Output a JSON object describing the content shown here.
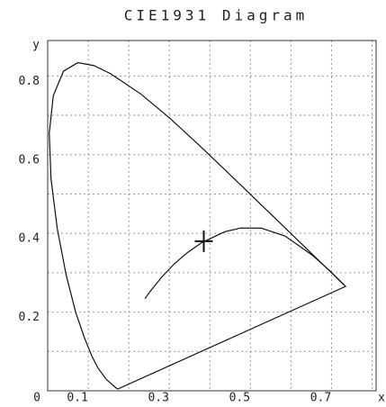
{
  "chart_data": {
    "type": "chromaticity",
    "title": "CIE1931 Diagram",
    "x_label": "x",
    "y_label": "y",
    "xlim": [
      0,
      0.81
    ],
    "ylim": [
      0,
      0.89
    ],
    "xticks": [
      0,
      0.1,
      0.3,
      0.5,
      0.7
    ],
    "yticks": [
      0.2,
      0.4,
      0.6,
      0.8
    ],
    "xgrid": [
      0.1,
      0.2,
      0.3,
      0.4,
      0.5,
      0.6,
      0.7,
      0.8
    ],
    "ygrid": [
      0.1,
      0.2,
      0.3,
      0.4,
      0.5,
      0.6,
      0.7,
      0.8
    ],
    "grid": true,
    "color": "#111111",
    "series": [
      {
        "x": [
          0.1741,
          0.1714,
          0.1644,
          0.144,
          0.1241,
          0.1096,
          0.0913,
          0.0687,
          0.0454,
          0.0235,
          0.0082,
          0.0039,
          0.0139,
          0.0389,
          0.0743,
          0.1142,
          0.1547,
          0.2296,
          0.3016,
          0.3731,
          0.4441,
          0.5125,
          0.5752,
          0.627,
          0.6915,
          0.719,
          0.7347
        ],
        "values": [
          0.005,
          0.0051,
          0.0109,
          0.0297,
          0.0578,
          0.0868,
          0.1327,
          0.2007,
          0.295,
          0.4127,
          0.5384,
          0.6548,
          0.7502,
          0.812,
          0.8338,
          0.8262,
          0.8059,
          0.7543,
          0.6923,
          0.6245,
          0.5547,
          0.4866,
          0.4242,
          0.3725,
          0.3083,
          0.2809,
          0.2653
        ],
        "closed": true
      },
      {
        "x": [
          0.2399,
          0.2526,
          0.2807,
          0.3135,
          0.3451,
          0.3805,
          0.4369,
          0.4764,
          0.5267,
          0.5857,
          0.6528,
          0.6957,
          0.7347
        ],
        "values": [
          0.2341,
          0.2522,
          0.2883,
          0.3237,
          0.3516,
          0.3768,
          0.4041,
          0.4137,
          0.4133,
          0.3931,
          0.3444,
          0.3049,
          0.2653
        ],
        "closed": false
      }
    ],
    "marker": {
      "x": 0.385,
      "y": 0.38
    }
  }
}
